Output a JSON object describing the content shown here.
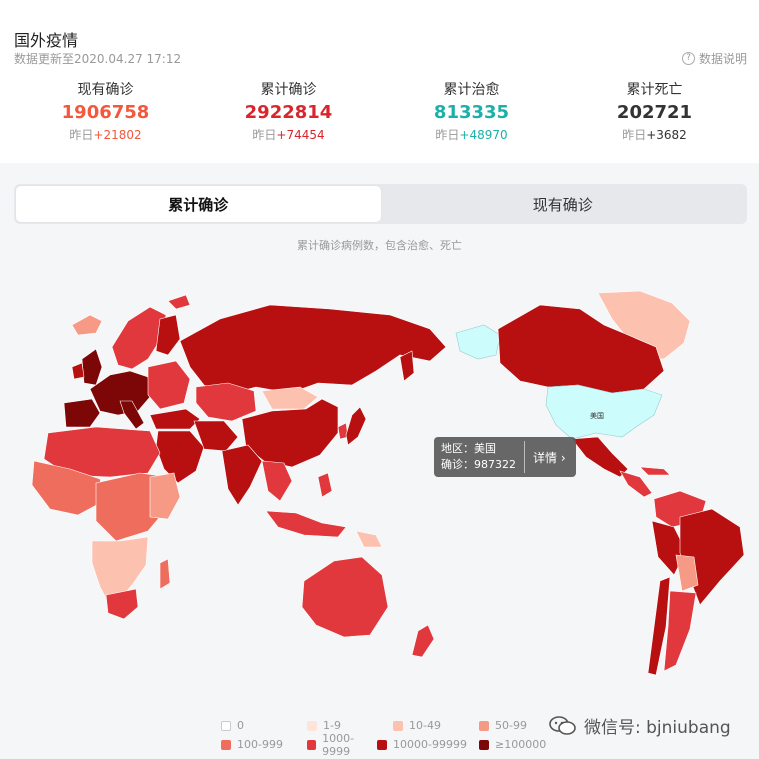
{
  "header": {
    "title": "国外疫情",
    "updated": "数据更新至2020.04.27 17:12",
    "help_label": "数据说明",
    "help_icon": "?"
  },
  "stats": [
    {
      "label": "现有确诊",
      "value": "1906758",
      "delta_prefix": "昨日",
      "delta": "+21802",
      "color": "#f3573c"
    },
    {
      "label": "累计确诊",
      "value": "2922814",
      "delta_prefix": "昨日",
      "delta": "+74454",
      "color": "#d9262c"
    },
    {
      "label": "累计治愈",
      "value": "813335",
      "delta_prefix": "昨日",
      "delta": "+48970",
      "color": "#1bb0a9"
    },
    {
      "label": "累计死亡",
      "value": "202721",
      "delta_prefix": "昨日",
      "delta": "+3682",
      "color": "#333333"
    }
  ],
  "tabs": [
    {
      "label": "累计确诊",
      "active": true
    },
    {
      "label": "现有确诊",
      "active": false
    }
  ],
  "map": {
    "subtitle": "累计确诊病例数，包含治愈、死亡",
    "highlight_label": "美国",
    "tooltip": {
      "region_label": "地区：",
      "region": "美国",
      "cases_label": "确诊：",
      "cases": "987322",
      "detail_label": "详情",
      "detail_icon": "›"
    }
  },
  "legend": [
    {
      "label": "0",
      "color": "#ffffff"
    },
    {
      "label": "1-9",
      "color": "#ffe4da"
    },
    {
      "label": "10-49",
      "color": "#fdc1b0"
    },
    {
      "label": "50-99",
      "color": "#f69a85"
    },
    {
      "label": "100-999",
      "color": "#ef6d5c"
    },
    {
      "label": "1000-9999",
      "color": "#e0383c"
    },
    {
      "label": "10000-99999",
      "color": "#b80f11"
    },
    {
      "label": "≥100000",
      "color": "#7d0606"
    }
  ],
  "colors": {
    "highlight": "#ccfdfc",
    "ocean": "#f5f6f8"
  },
  "watermark": "微信号: bjniubang",
  "watermark_icon": "wechat-icon"
}
